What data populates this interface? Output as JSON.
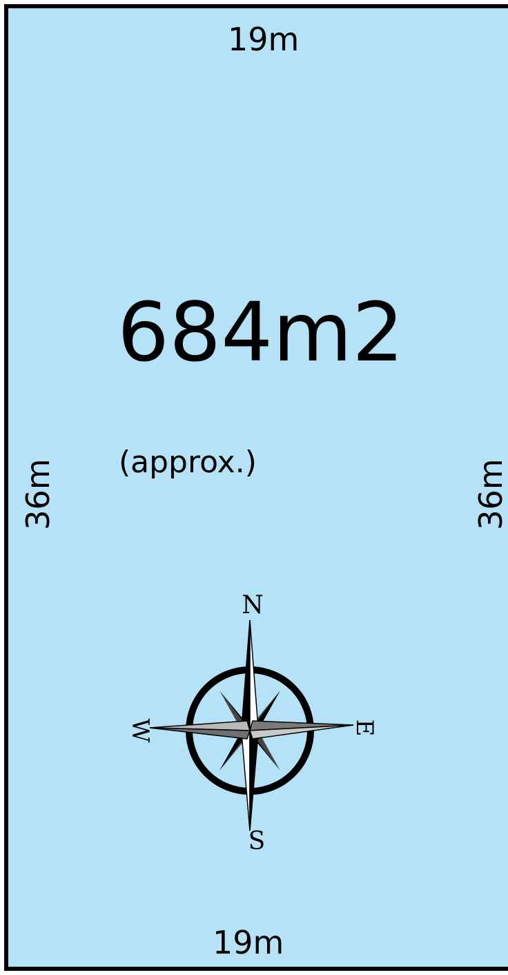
{
  "plan": {
    "area": "684m2",
    "area_note": "(approx.)",
    "dimensions": {
      "top": "19m",
      "bottom": "19m",
      "left": "36m",
      "right": "36m"
    },
    "compass": {
      "north": "N",
      "south": "S",
      "east": "E",
      "west": "W"
    },
    "colors": {
      "land": "#b5e2f7",
      "boundary": "#000000"
    }
  }
}
